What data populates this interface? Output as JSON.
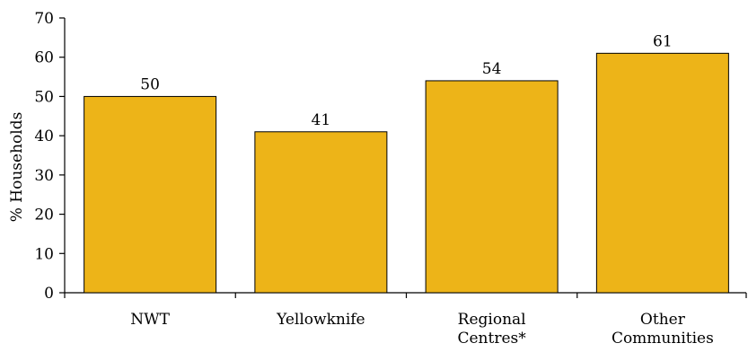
{
  "chart_data": {
    "type": "bar",
    "categories": [
      [
        "NWT"
      ],
      [
        "Yellowknife"
      ],
      [
        "Regional",
        "Centres*"
      ],
      [
        "Other",
        "Communities"
      ]
    ],
    "values": [
      50,
      41,
      54,
      61
    ],
    "value_labels": [
      "50",
      "41",
      "54",
      "61"
    ],
    "title": "",
    "xlabel": "",
    "ylabel": "% Households",
    "ylim": [
      0,
      70
    ],
    "yticks": [
      0,
      10,
      20,
      30,
      40,
      50,
      60,
      70
    ],
    "grid": false,
    "legend": "none",
    "bar_color": "#EDB418",
    "bar_edge_color": "#000000"
  }
}
